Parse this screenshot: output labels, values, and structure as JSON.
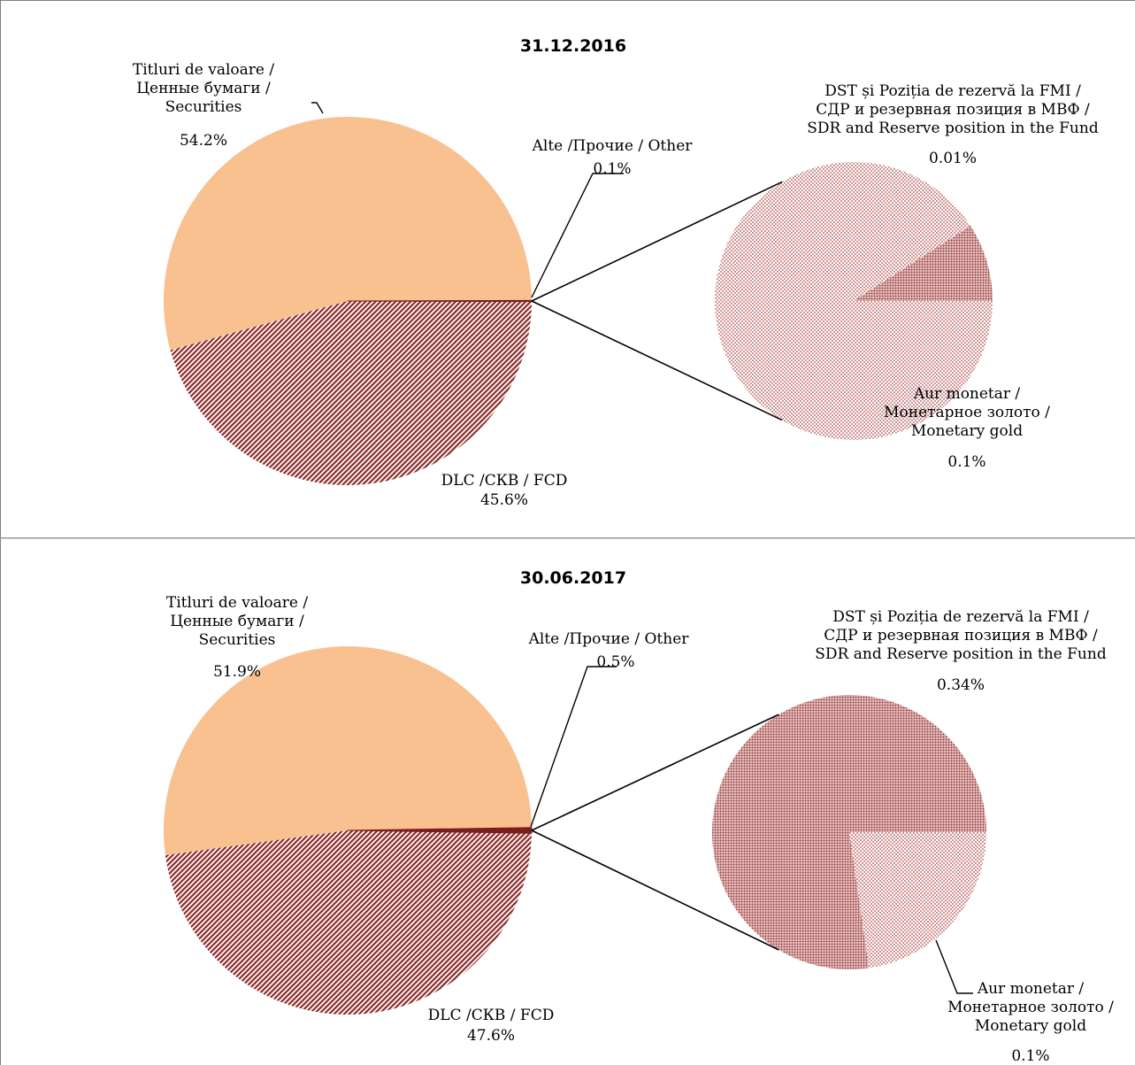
{
  "colors": {
    "securities": "#f9c090",
    "fcd": "#8b2a2a",
    "other": "#7a1e1e",
    "gold_dots": "#a03a3a",
    "sdr_fill": "#a85050"
  },
  "chart_data": [
    {
      "type": "pie",
      "title": "31.12.2016",
      "slices": [
        {
          "label": [
            "Titluri de valoare /",
            "Ценные бумаги /",
            "Securities"
          ],
          "value_label": "54.2%",
          "value": 54.2
        },
        {
          "label": [
            "DLC /СКВ / FCD"
          ],
          "value_label": "45.6%",
          "value": 45.6
        },
        {
          "label": [
            "Alte /Прочие / Other"
          ],
          "value_label": "0.1%",
          "value": 0.1
        }
      ],
      "breakout": {
        "of": "Alte /Прочие / Other",
        "slices": [
          {
            "label": [
              "DST și Poziția de rezervă la FMI /",
              "СДР и резервная позиция в МВФ /",
              "SDR and Reserve position in the Fund"
            ],
            "value_label": "0.01%",
            "value": 0.01
          },
          {
            "label": [
              "Aur monetar /",
              "Монетарное золото /",
              "Monetary gold"
            ],
            "value_label": "0.1%",
            "value": 0.1
          }
        ]
      }
    },
    {
      "type": "pie",
      "title": "30.06.2017",
      "slices": [
        {
          "label": [
            "Titluri de valoare /",
            "Ценные бумаги /",
            "Securities"
          ],
          "value_label": "51.9%",
          "value": 51.9
        },
        {
          "label": [
            "DLC /СКВ / FCD"
          ],
          "value_label": "47.6%",
          "value": 47.6
        },
        {
          "label": [
            "Alte /Прочие / Other"
          ],
          "value_label": "0.5%",
          "value": 0.5
        }
      ],
      "breakout": {
        "of": "Alte /Прочие / Other",
        "slices": [
          {
            "label": [
              "DST și Poziția de rezervă la FMI /",
              "СДР и резервная позиция в МВФ /",
              "SDR and Reserve position in the Fund"
            ],
            "value_label": "0.34%",
            "value": 0.34
          },
          {
            "label": [
              "Aur monetar /",
              "Монетарное золото /",
              "Monetary gold"
            ],
            "value_label": "0.1%",
            "value": 0.1
          }
        ]
      }
    }
  ]
}
